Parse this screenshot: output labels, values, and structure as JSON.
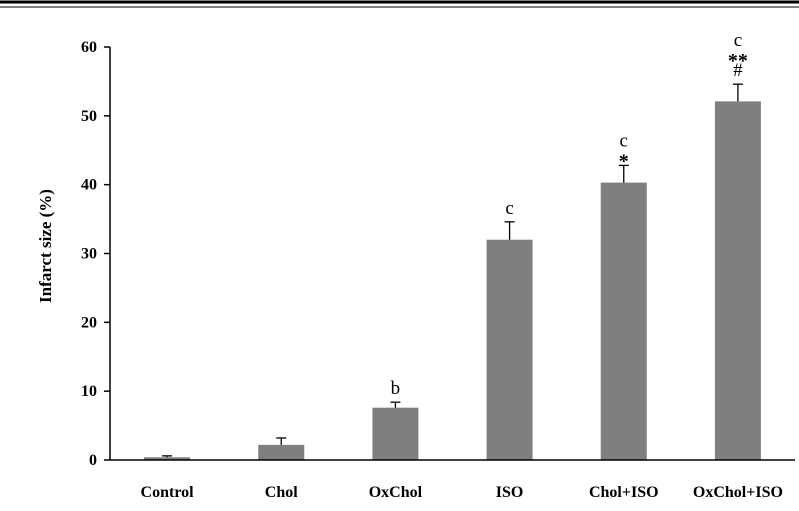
{
  "chart_data": {
    "type": "bar",
    "title": "",
    "xlabel": "",
    "ylabel": "Infarct size (%)",
    "ylim": [
      0,
      60
    ],
    "yticks": [
      "0",
      "10",
      "20",
      "30",
      "40",
      "50",
      "60"
    ],
    "grid": false,
    "bar_color": "#7f7f7f",
    "categories": [
      "Control",
      "Chol",
      "OxChol",
      "ISO",
      "Chol+ISO",
      "OxChol+ISO"
    ],
    "values": [
      0.4,
      2.2,
      7.6,
      32.0,
      40.3,
      52.1
    ],
    "errors": [
      0.2,
      1.0,
      0.8,
      2.6,
      2.5,
      2.5
    ],
    "annotations": [
      [],
      [],
      [
        "b"
      ],
      [
        "c"
      ],
      [
        "c",
        "*"
      ],
      [
        "c",
        "**",
        "#"
      ]
    ]
  }
}
